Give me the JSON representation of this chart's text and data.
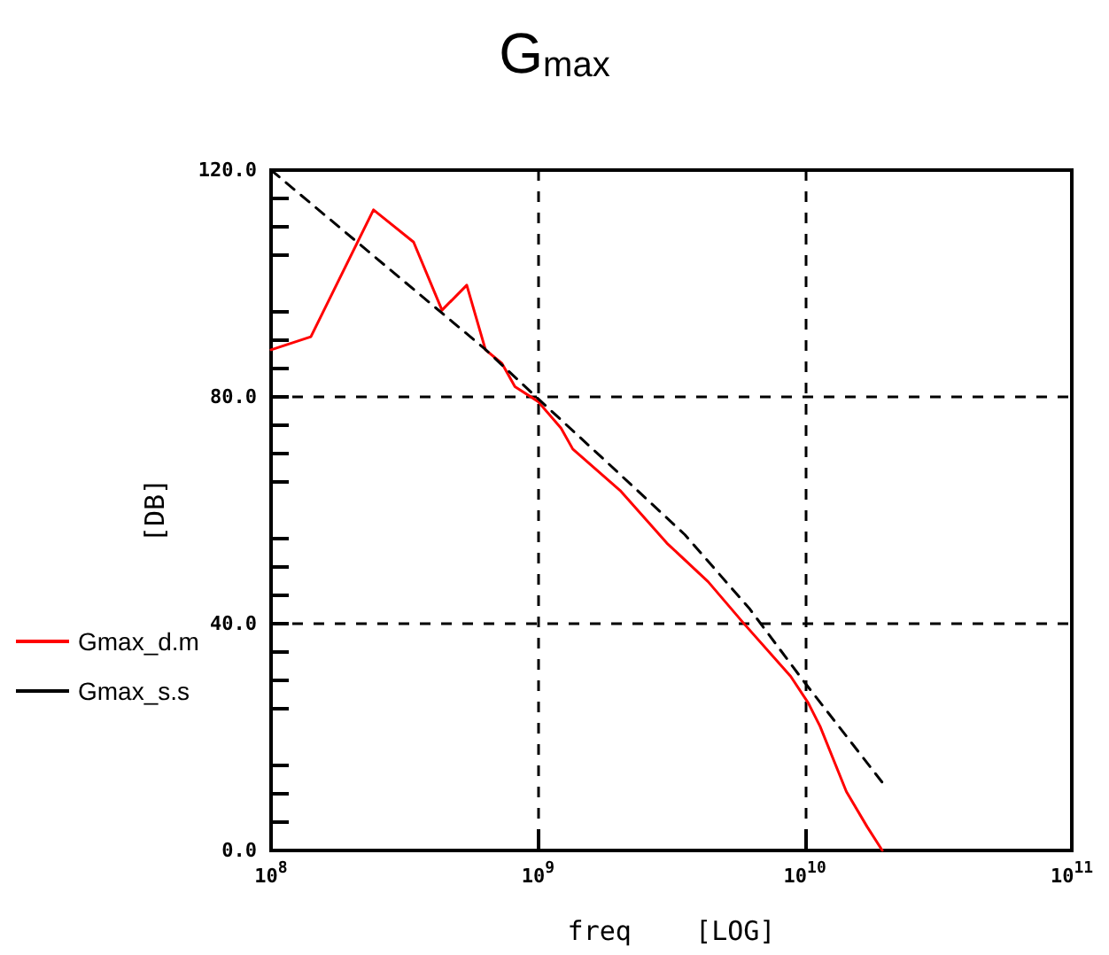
{
  "chart_data": {
    "type": "line",
    "title": "G$_{max}$",
    "xlabel": "freq    [LOG]",
    "ylabel": "[DB]",
    "log": "x",
    "xlim": [
      100000000,
      100000000000
    ],
    "ylim": [
      0,
      120
    ],
    "xticks": [
      {
        "value": 100000000,
        "label": "10$^{8}$"
      },
      {
        "value": 1000000000,
        "label": "10$^{9}$"
      },
      {
        "value": 10000000000,
        "label": "10$^{10}$"
      },
      {
        "value": 100000000000,
        "label": "10$^{11}$"
      }
    ],
    "yticks": [
      {
        "value": 0,
        "label": "0.0"
      },
      {
        "value": 40,
        "label": "40.0"
      },
      {
        "value": 80,
        "label": "80.0"
      },
      {
        "value": 120,
        "label": "120.0"
      }
    ],
    "grid": true,
    "legend": "left",
    "marker": "none",
    "series": [
      {
        "name": "Gmax_d.m",
        "color": "#ff0000",
        "line_style": "solid",
        "x": [
          100000000,
          141000000,
          242000000,
          342000000,
          437000000,
          541000000,
          636000000,
          733000000,
          820000000,
          1000000000,
          1220000000,
          1350000000,
          2030000000,
          3040000000,
          4340000000,
          5890000000,
          8850000000,
          10300000000,
          11400000000,
          14300000000,
          17100000000,
          19500000000
        ],
        "values": [
          88.3,
          90.6,
          113,
          107.3,
          95.3,
          99.7,
          88.3,
          85.9,
          81.8,
          79.2,
          74.5,
          70.8,
          63.5,
          54.2,
          47.4,
          40.1,
          30.7,
          26,
          21.9,
          10.4,
          4.2,
          0
        ]
      },
      {
        "name": "Gmax_s.s",
        "color": "#000000",
        "line_style": "dashed",
        "x": [
          100000000,
          631000000,
          1000000000,
          1840000000,
          3550000000,
          6190000000,
          9770000000,
          19500000000
        ],
        "values": [
          120,
          88.5,
          79.7,
          68.2,
          55.7,
          42.7,
          30.2,
          12
        ]
      }
    ]
  }
}
